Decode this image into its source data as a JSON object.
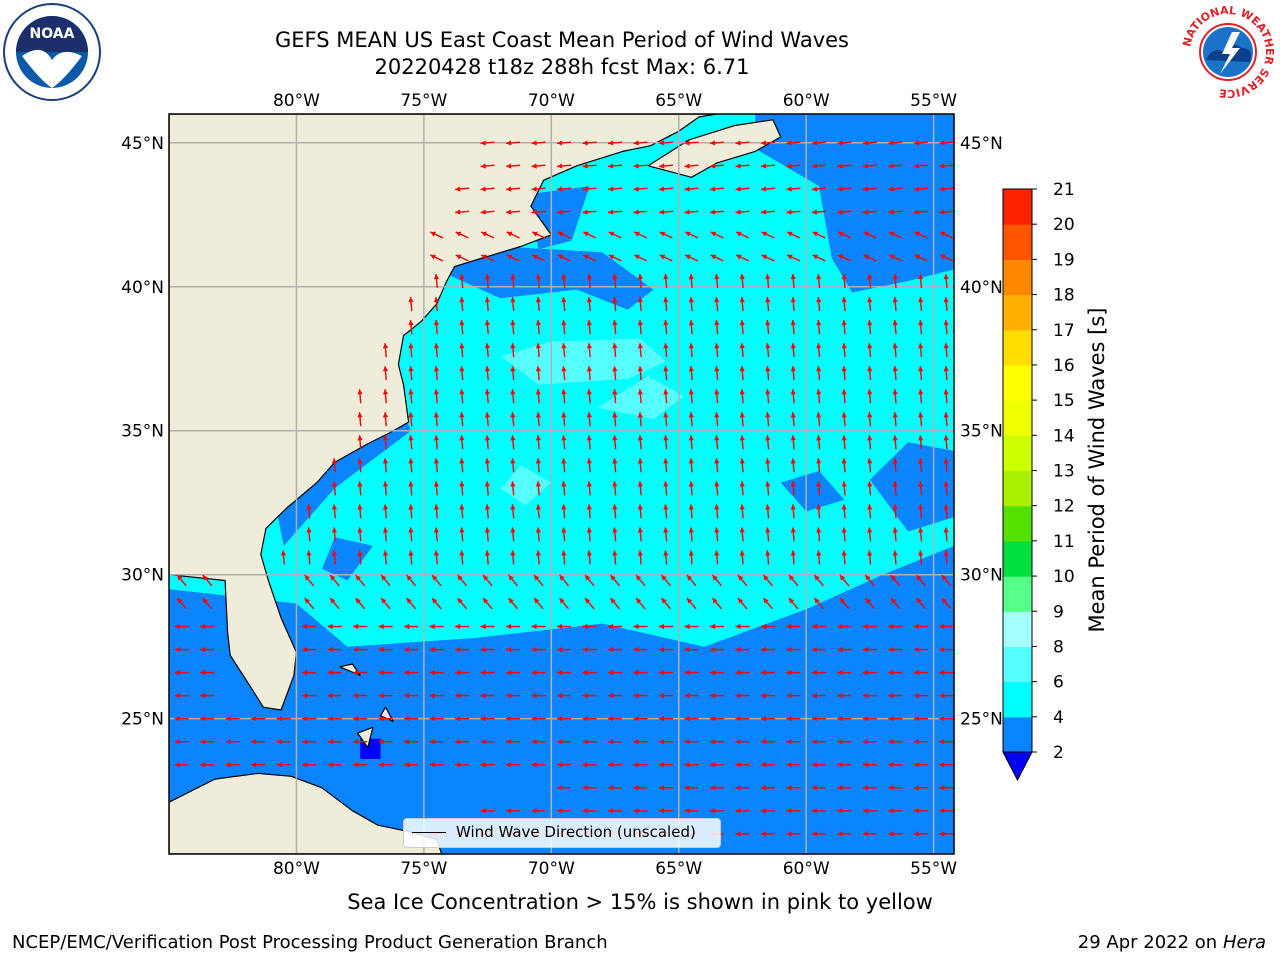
{
  "title_line1": "GEFS MEAN US East Coast Mean Period of Wind Waves",
  "title_line2": "20220428 t18z 288h fcst   Max: 6.71",
  "map": {
    "lon_range": [
      -85,
      -54.2
    ],
    "lat_range": [
      20.3,
      46
    ],
    "lon_ticks": [
      "80°W",
      "75°W",
      "70°W",
      "65°W",
      "60°W",
      "55°W"
    ],
    "lon_tick_values": [
      -80,
      -75,
      -70,
      -65,
      -60,
      -55
    ],
    "lat_ticks": [
      "25°N",
      "30°N",
      "35°N",
      "40°N",
      "45°N"
    ],
    "lat_tick_values": [
      25,
      30,
      35,
      40,
      45
    ],
    "colors": {
      "land": "#efedda",
      "ocean_base": "#00ffff",
      "band_2_4": "#0a84ff",
      "band_6_8": "#55ffff",
      "arrow": "#ff0000",
      "coast": "#000000",
      "grid": "#b0b0b0"
    },
    "legend_label": "Wind Wave Direction (unscaled)"
  },
  "colorbar": {
    "label": "Mean Period of Wind Waves [s]",
    "ticks": [
      "2",
      "4",
      "6",
      "8",
      "9",
      "10",
      "11",
      "12",
      "13",
      "14",
      "15",
      "16",
      "17",
      "18",
      "19",
      "20",
      "21"
    ],
    "colors": [
      "#0a84ff",
      "#00ffff",
      "#55ffff",
      "#a4ffff",
      "#55ff88",
      "#00e040",
      "#55e000",
      "#aaee00",
      "#ccff00",
      "#eeff00",
      "#ffff00",
      "#ffdd00",
      "#ffb000",
      "#ff8800",
      "#ff5500",
      "#ff2200",
      "#ff0000"
    ],
    "under_color": "#0000ff"
  },
  "ice_note": "Sea Ice Concentration > 15% is shown in pink to yellow",
  "footer": {
    "left": "NCEP/EMC/Verification Post Processing Product Generation Branch",
    "right_date": "29 Apr 2022 on ",
    "right_machine": "Hera"
  },
  "logos": {
    "noaa": "NOAA",
    "nws_ring": "NATIONAL WEATHER SERVICE"
  },
  "icons": {
    "noaa": "noaa-logo-icon",
    "nws": "nws-logo-icon"
  }
}
